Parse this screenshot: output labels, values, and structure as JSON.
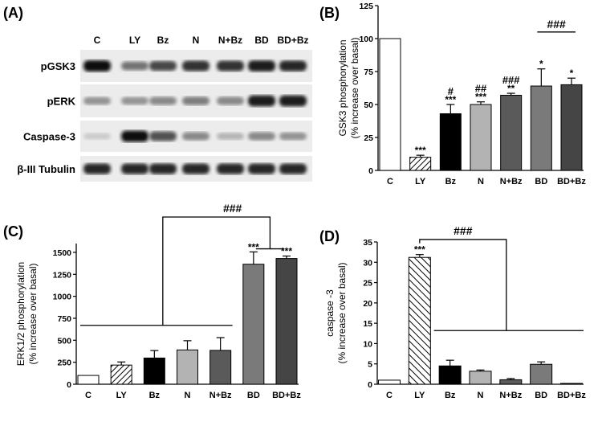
{
  "panels": {
    "A": {
      "label": "(A)",
      "lanes": [
        "C",
        "LY",
        "Bz",
        "N",
        "N+Bz",
        "BD",
        "BD+Bz"
      ],
      "rows": [
        {
          "name": "pGSK3",
          "intensity": [
            1.0,
            0.55,
            0.75,
            0.85,
            0.85,
            0.95,
            0.9
          ]
        },
        {
          "name": "pERK",
          "intensity": [
            0.4,
            0.4,
            0.45,
            0.5,
            0.45,
            0.95,
            0.95
          ]
        },
        {
          "name": "Caspase-3",
          "intensity": [
            0.15,
            1.0,
            0.7,
            0.45,
            0.25,
            0.45,
            0.4
          ]
        },
        {
          "name": "β-III Tubulin",
          "intensity": [
            0.9,
            0.9,
            0.9,
            0.9,
            0.9,
            0.9,
            0.9
          ]
        }
      ]
    },
    "B": {
      "label": "(B)"
    },
    "C": {
      "label": "(C)"
    },
    "D": {
      "label": "(D)"
    }
  },
  "chart_data": [
    {
      "panel": "B",
      "type": "bar",
      "categories": [
        "C",
        "LY",
        "Bz",
        "N",
        "N+Bz",
        "BD",
        "BD+Bz"
      ],
      "values": [
        100,
        10,
        43,
        50,
        57,
        64,
        65
      ],
      "errors": [
        0,
        1.5,
        7,
        2,
        1.5,
        13,
        5
      ],
      "fills": [
        "white",
        "hatch",
        "#000000",
        "#b3b3b3",
        "#5a5a5a",
        "#7a7a7a",
        "#454545"
      ],
      "ylabel": [
        "GSK3 phosphorylation",
        "(% increase over basal)"
      ],
      "ylim": [
        0,
        125
      ],
      "yticks": [
        0,
        25,
        50,
        75,
        100,
        125
      ],
      "stars": [
        "",
        "***",
        "***",
        "***",
        "**",
        "*",
        "*"
      ],
      "hashes": [
        "",
        "",
        "#",
        "##",
        "###",
        "",
        ""
      ],
      "bracket": {
        "from": "BD",
        "to": "BD+Bz",
        "value": 105,
        "label": "###"
      }
    },
    {
      "panel": "C",
      "type": "bar",
      "categories": [
        "C",
        "LY",
        "Bz",
        "N",
        "N+Bz",
        "BD",
        "BD+Bz"
      ],
      "values": [
        100,
        218,
        298,
        390,
        385,
        1365,
        1430
      ],
      "errors": [
        0,
        35,
        85,
        105,
        145,
        140,
        28
      ],
      "fills": [
        "white",
        "hatch",
        "#000000",
        "#b3b3b3",
        "#5a5a5a",
        "#7a7a7a",
        "#454545"
      ],
      "ylabel": [
        "ERK1/2 phosphorylation",
        "(% increase over basal)"
      ],
      "ylim": [
        0,
        1600
      ],
      "yticks": [
        0,
        250,
        500,
        750,
        1000,
        1250,
        1500
      ],
      "stars": [
        "",
        "",
        "",
        "",
        "",
        "***",
        "***"
      ],
      "comparison": {
        "label": "###",
        "group_a": [
          "C",
          "LY",
          "Bz",
          "N",
          "N+Bz"
        ],
        "group_b": [
          "BD",
          "BD+Bz"
        ],
        "group_a_line": 670,
        "group_b_line": 1540,
        "top": 1780
      }
    },
    {
      "panel": "D",
      "type": "bar",
      "categories": [
        "C",
        "LY",
        "Bz",
        "N",
        "N+Bz",
        "BD",
        "BD+Bz"
      ],
      "values": [
        1.0,
        31.2,
        4.5,
        3.2,
        1.1,
        4.9,
        0.2
      ],
      "errors": [
        0,
        0.7,
        1.4,
        0.3,
        0.3,
        0.6,
        0
      ],
      "fills": [
        "white",
        "hatch",
        "#000000",
        "#b3b3b3",
        "#5a5a5a",
        "#7a7a7a",
        "#454545"
      ],
      "ylabel": [
        "caspase -3",
        "(% increase over basal)"
      ],
      "ylim": [
        0,
        35
      ],
      "yticks": [
        0,
        5,
        10,
        15,
        20,
        25,
        30,
        35
      ],
      "stars": [
        "",
        "***",
        "",
        "",
        "",
        "",
        ""
      ],
      "comparison": {
        "label": "###",
        "group_a": [
          "LY"
        ],
        "group_b": [
          "Bz",
          "N",
          "N+Bz",
          "BD",
          "BD+Bz"
        ],
        "group_b_line": 13.2,
        "top": 36
      }
    }
  ]
}
